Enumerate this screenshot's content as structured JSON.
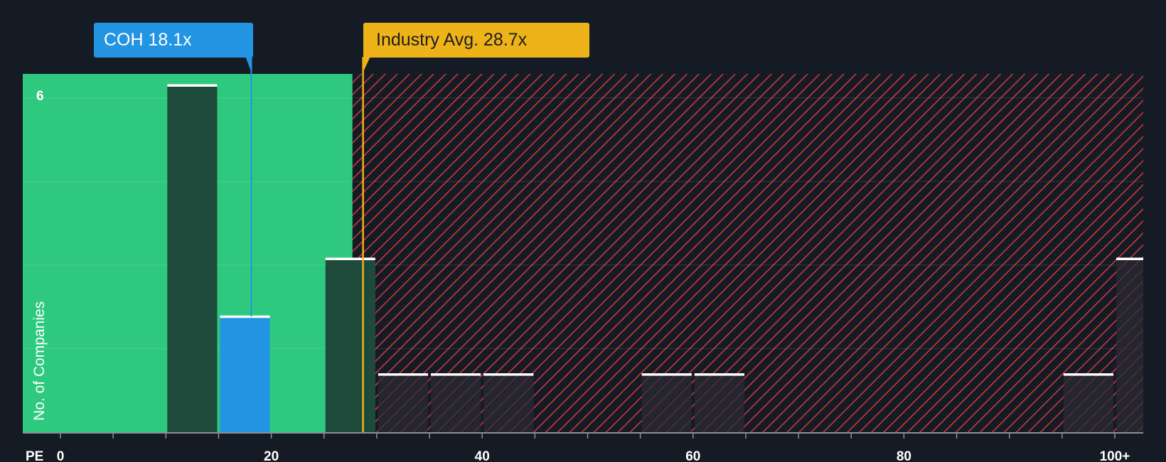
{
  "chart_data": {
    "type": "bar",
    "x_axis_label": "PE",
    "y_axis_label": "No. of Companies",
    "x_ticks": [
      "0",
      "20",
      "40",
      "60",
      "80",
      "100+"
    ],
    "x_tick_values": [
      0,
      20,
      40,
      60,
      80,
      100
    ],
    "y_tick_labels": [
      {
        "value": 6,
        "label": "6"
      }
    ],
    "ylim": [
      0,
      6.2
    ],
    "bin_width": 5,
    "bins": [
      {
        "x_start": 10,
        "x_end": 15,
        "count": 6
      },
      {
        "x_start": 15,
        "x_end": 20,
        "count": 2,
        "highlight": true
      },
      {
        "x_start": 25,
        "x_end": 30,
        "count": 3
      },
      {
        "x_start": 30,
        "x_end": 35,
        "count": 1
      },
      {
        "x_start": 35,
        "x_end": 40,
        "count": 1
      },
      {
        "x_start": 40,
        "x_end": 45,
        "count": 1
      },
      {
        "x_start": 55,
        "x_end": 60,
        "count": 1
      },
      {
        "x_start": 60,
        "x_end": 65,
        "count": 1
      },
      {
        "x_start": 95,
        "x_end": 100,
        "count": 1
      },
      {
        "x_start": 100,
        "x_end": 105,
        "count": 3
      }
    ],
    "company": {
      "label": "COH 18.1x",
      "value": 18.1
    },
    "industry": {
      "label": "Industry Avg. 28.7x",
      "value": 28.7
    },
    "fair_zone_end": 27.7,
    "colors": {
      "background": "#151b24",
      "fair_zone": "#2ec97f",
      "bar_dark": "#1e4a3b",
      "company_bar": "#2394e1",
      "industry": "#efb31a",
      "hatch": "#c8373e",
      "overvalued_bar": "#2a2a33"
    }
  }
}
